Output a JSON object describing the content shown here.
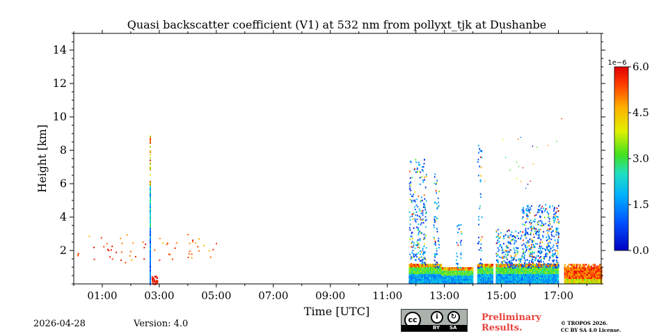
{
  "chart_data": {
    "type": "heatmap",
    "title": "Quasi backscatter coefficient (V1) at 532 nm from pollyxt_tjk at Dushanbe",
    "xlabel": "Time [UTC]",
    "ylabel": "Height [km]",
    "x_range_hours": [
      0,
      18.5
    ],
    "x_ticks": [
      {
        "h": 1,
        "label": "01:00"
      },
      {
        "h": 3,
        "label": "03:00"
      },
      {
        "h": 5,
        "label": "05:00"
      },
      {
        "h": 7,
        "label": "07:00"
      },
      {
        "h": 9,
        "label": "09:00"
      },
      {
        "h": 11,
        "label": "11:00"
      },
      {
        "h": 13,
        "label": "13:00"
      },
      {
        "h": 15,
        "label": "15:00"
      },
      {
        "h": 17,
        "label": "17:00"
      }
    ],
    "ylim": [
      0,
      15
    ],
    "y_ticks": [
      2,
      4,
      6,
      8,
      10,
      12,
      14
    ],
    "colorbar": {
      "range": [
        0,
        6
      ],
      "ticks": [
        "0.0",
        "1.5",
        "3.0",
        "4.5",
        "6.0"
      ],
      "exponent": "1e−6",
      "colormap": "jet"
    },
    "features": [
      {
        "name": "night-scatter",
        "t": [
          0.1,
          5.0
        ],
        "z": [
          1.3,
          3.0
        ],
        "level": 5.0
      },
      {
        "name": "spike-0245",
        "t": [
          2.66,
          2.7
        ],
        "z": [
          0.0,
          8.9
        ],
        "level": 3.0
      },
      {
        "name": "surface-red-0250",
        "t": [
          2.7,
          2.95
        ],
        "z": [
          0.0,
          0.5
        ],
        "level": 6.0
      },
      {
        "name": "afternoon-boundary-layer",
        "t": [
          11.75,
          17.0
        ],
        "z": [
          0.0,
          1.2
        ],
        "level": 3.0
      },
      {
        "name": "cloud-plumes",
        "t": [
          11.75,
          17.0
        ],
        "z": [
          0.5,
          9.0
        ],
        "level": 1.5
      },
      {
        "name": "evening-layer",
        "t": [
          17.2,
          18.5
        ],
        "z": [
          0.0,
          1.2
        ],
        "level": 5.0
      }
    ]
  },
  "footer": {
    "date": "2026-04-28",
    "version": "Version: 4.0",
    "license_badge": {
      "cc": "cc",
      "by": "BY",
      "sa": "SA"
    },
    "preliminary_line1": "Preliminary",
    "preliminary_line2": "Results.",
    "copyright_line1": "© TROPOS 2026.",
    "copyright_line2": "CC BY SA 4.0 License."
  }
}
